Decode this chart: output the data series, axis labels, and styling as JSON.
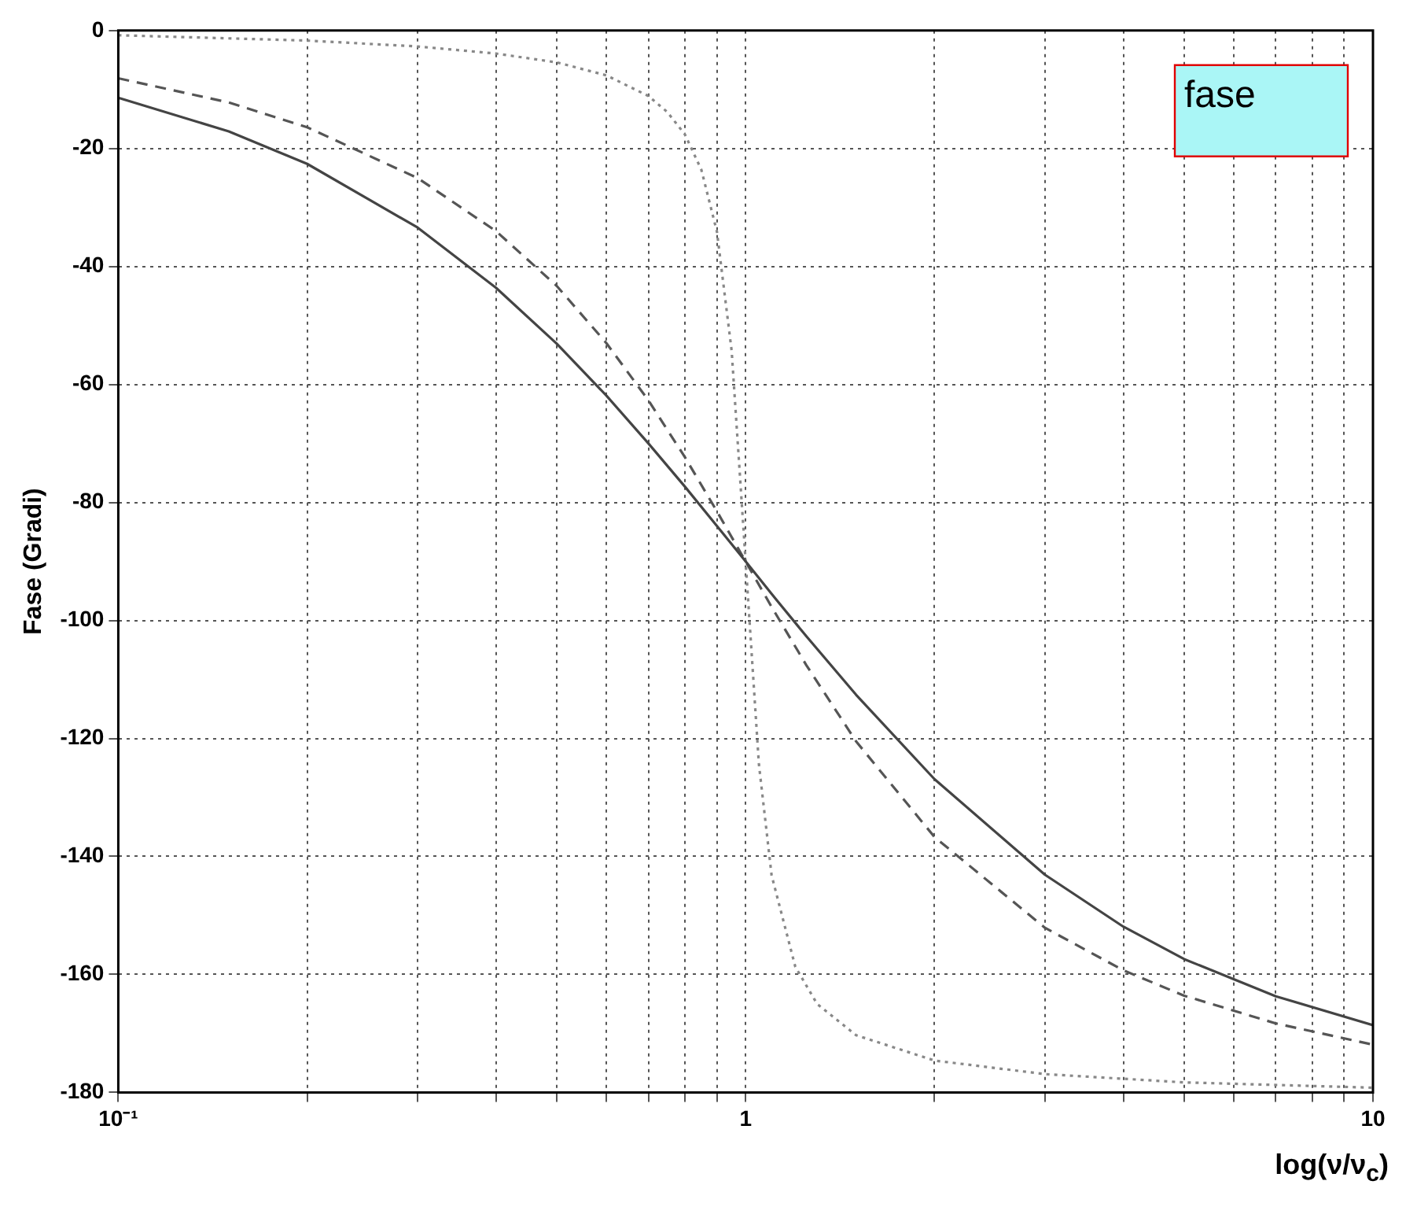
{
  "chart_data": {
    "type": "line",
    "xlabel": "log(ν/ν$_{c}$)",
    "ylabel": "Fase (Gradi)",
    "log": "x",
    "grid": true,
    "legend": false,
    "marker": "none",
    "xlim": [
      0.1,
      10
    ],
    "xticks": [
      {
        "value": 0.1,
        "label": "10⁻¹"
      },
      {
        "value": 0.2,
        "label": null
      },
      {
        "value": 0.3,
        "label": null
      },
      {
        "value": 0.4,
        "label": null
      },
      {
        "value": 0.5,
        "label": null
      },
      {
        "value": 0.6,
        "label": null
      },
      {
        "value": 0.7,
        "label": null
      },
      {
        "value": 0.8,
        "label": null
      },
      {
        "value": 0.9,
        "label": null
      },
      1,
      {
        "value": 2,
        "label": null
      },
      {
        "value": 3,
        "label": null
      },
      {
        "value": 4,
        "label": null
      },
      {
        "value": 5,
        "label": null
      },
      {
        "value": 6,
        "label": null
      },
      {
        "value": 7,
        "label": null
      },
      {
        "value": 8,
        "label": null
      },
      {
        "value": 9,
        "label": null
      },
      10
    ],
    "ylim": [
      -180,
      0
    ],
    "yticks": [
      -180,
      -160,
      -140,
      -120,
      -100,
      -80,
      -60,
      -40,
      -20,
      0
    ],
    "annotations": [
      "fase"
    ],
    "series": [
      {
        "color": "#444444",
        "line_style": "solid",
        "x": [
          0.1,
          0.15,
          0.2,
          0.3,
          0.4,
          0.5,
          0.6,
          0.7,
          0.8,
          0.9,
          1,
          1.1,
          1.25,
          1.5,
          2,
          3,
          4,
          5,
          7,
          10
        ],
        "values": [
          -11.4,
          -17.1,
          -22.6,
          -33.4,
          -43.6,
          -53.1,
          -61.9,
          -70.0,
          -77.3,
          -84.0,
          -90,
          -95.5,
          -102.7,
          -112.6,
          -126.9,
          -143.1,
          -151.9,
          -157.4,
          -163.7,
          -168.6
        ]
      },
      {
        "color": "#555555",
        "line_style": "dashed",
        "x": [
          0.1,
          0.15,
          0.2,
          0.3,
          0.4,
          0.5,
          0.6,
          0.7,
          0.8,
          0.9,
          1,
          1.1,
          1.25,
          1.5,
          2,
          3,
          4,
          5,
          7,
          10
        ],
        "values": [
          -8.1,
          -12.2,
          -16.4,
          -25.0,
          -34.0,
          -43.3,
          -53.0,
          -62.7,
          -72.3,
          -81.5,
          -90,
          -97.7,
          -107.6,
          -120.5,
          -136.7,
          -152.1,
          -159.3,
          -163.6,
          -168.3,
          -171.9
        ]
      },
      {
        "color": "#888888",
        "line_style": "dotted",
        "x": [
          0.1,
          0.2,
          0.3,
          0.4,
          0.5,
          0.6,
          0.7,
          0.75,
          0.8,
          0.85,
          0.9,
          0.95,
          1,
          1.05,
          1.1,
          1.2,
          1.3,
          1.5,
          2,
          3,
          5,
          10
        ],
        "values": [
          -0.8,
          -1.7,
          -2.7,
          -3.9,
          -5.4,
          -7.6,
          -11.1,
          -13.8,
          -17.6,
          -23.6,
          -34.1,
          -54.3,
          -90,
          -124.4,
          -143.2,
          -158.7,
          -165.0,
          -170.3,
          -174.6,
          -176.9,
          -178.3,
          -179.2
        ]
      }
    ]
  }
}
